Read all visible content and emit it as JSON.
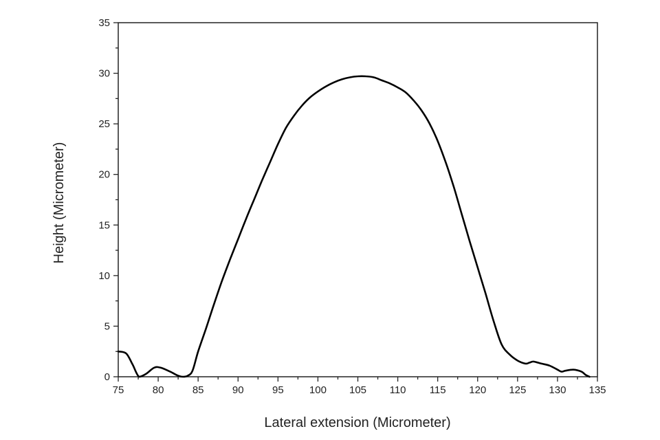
{
  "chart_data": {
    "type": "line",
    "title": "",
    "xlabel": "Lateral extension (Micrometer)",
    "ylabel": "Height (Micrometer)",
    "xlim": [
      75,
      135
    ],
    "ylim": [
      0,
      35
    ],
    "xticks": [
      75,
      80,
      85,
      90,
      95,
      100,
      105,
      110,
      115,
      120,
      125,
      130,
      135
    ],
    "yticks": [
      0,
      5,
      10,
      15,
      20,
      25,
      30,
      35
    ],
    "grid": false,
    "legend": "none",
    "color": "#000000",
    "series": [
      {
        "x": [
          75,
          76,
          76.8,
          77.6,
          78.5,
          79.5,
          80.3,
          81.5,
          82.5,
          83.1,
          83.7,
          84.3,
          85,
          86,
          87,
          88,
          89,
          90,
          91,
          92,
          93,
          94,
          95,
          96,
          97,
          98,
          99,
          100,
          101,
          102,
          103,
          104,
          105,
          106,
          107,
          108,
          109,
          110,
          111,
          112,
          113,
          114,
          115,
          116,
          117,
          118,
          119,
          120,
          121,
          122,
          123,
          124,
          125,
          126,
          126.5,
          127,
          128,
          129,
          130,
          130.5,
          131,
          132,
          133,
          133.5,
          134
        ],
        "y": [
          2.5,
          2.3,
          1.2,
          0,
          0.3,
          0.9,
          0.9,
          0.5,
          0.1,
          0,
          0.1,
          0.6,
          2.5,
          4.8,
          7.2,
          9.5,
          11.6,
          13.6,
          15.6,
          17.5,
          19.4,
          21.2,
          23,
          24.6,
          25.8,
          26.8,
          27.6,
          28.2,
          28.7,
          29.1,
          29.4,
          29.6,
          29.7,
          29.7,
          29.6,
          29.3,
          29,
          28.6,
          28.1,
          27.3,
          26.3,
          25,
          23.3,
          21.2,
          18.8,
          16.1,
          13.4,
          10.8,
          8.2,
          5.5,
          3.2,
          2.2,
          1.6,
          1.3,
          1.4,
          1.5,
          1.3,
          1.1,
          0.7,
          0.5,
          0.6,
          0.7,
          0.5,
          0.2,
          0
        ]
      }
    ]
  }
}
